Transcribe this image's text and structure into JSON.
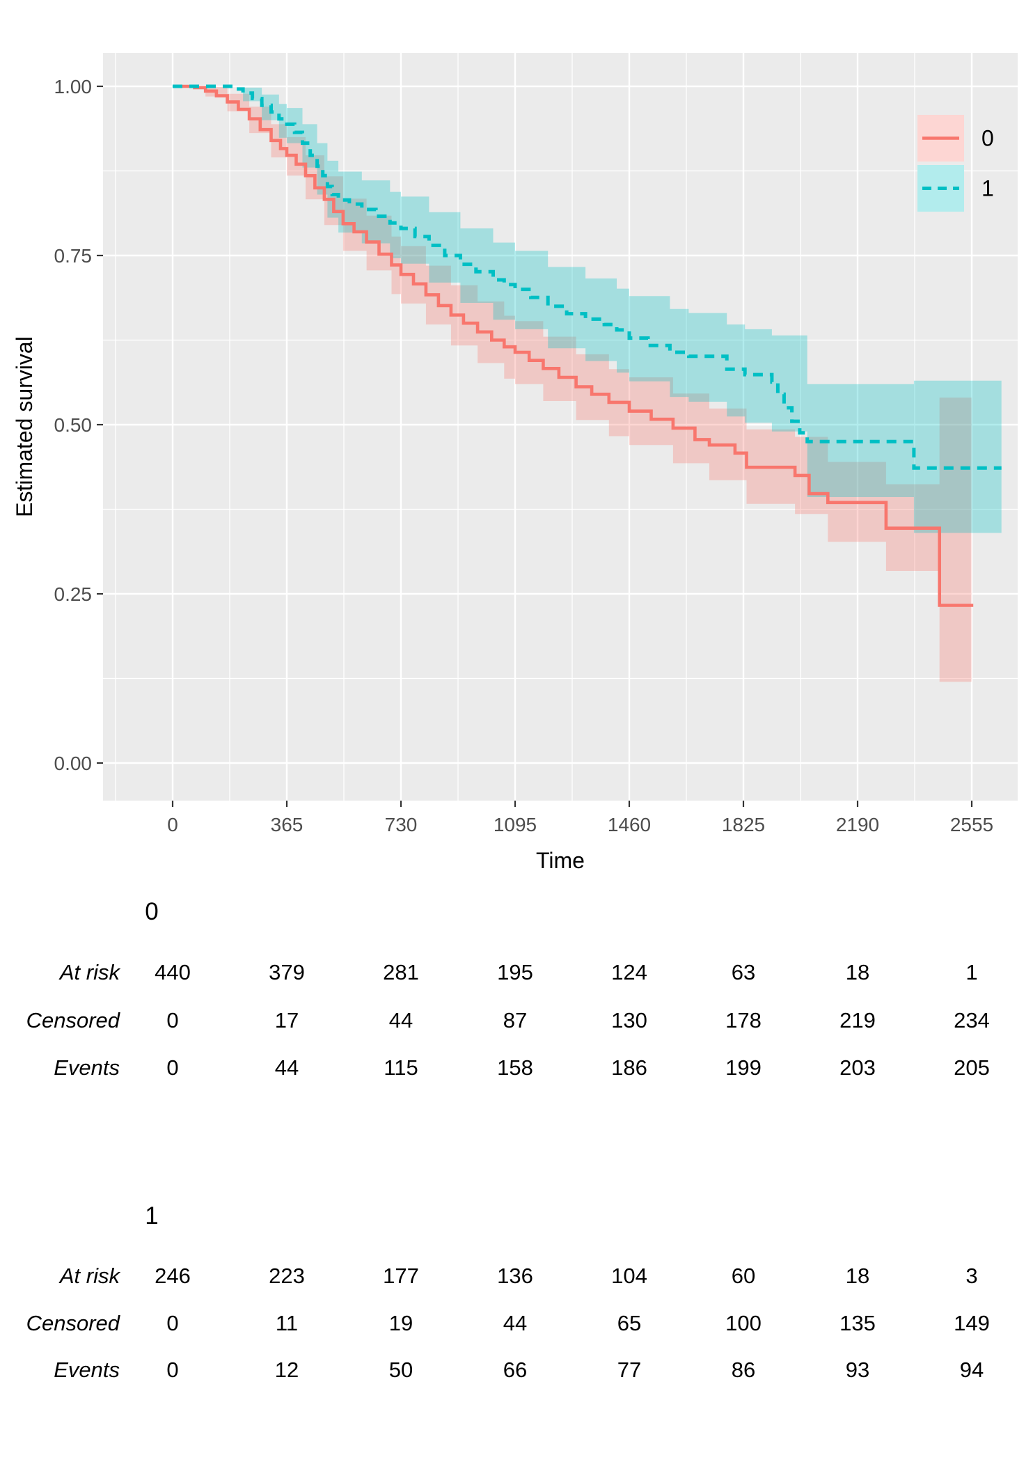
{
  "chart_data": {
    "type": "line",
    "subtype": "kaplan-meier-step-with-confidence-bands",
    "title": "",
    "xlabel": "Time",
    "ylabel": "Estimated survival",
    "x_ticks": [
      0,
      365,
      730,
      1095,
      1460,
      1825,
      2190,
      2555
    ],
    "x_tick_labels": [
      "0",
      "365",
      "730",
      "1095",
      "1460",
      "1825",
      "2190",
      "2555"
    ],
    "y_ticks": [
      0,
      0.25,
      0.5,
      0.75,
      1
    ],
    "y_tick_labels": [
      "0.00",
      "0.25",
      "0.50",
      "0.75",
      "1.00"
    ],
    "xlim": [
      -220,
      2700
    ],
    "ylim": [
      -0.055,
      1.05
    ],
    "grid": {
      "major": true,
      "minor": true,
      "color": "#FFFFFF",
      "panel_background": "#EBEBEB"
    },
    "legend": {
      "position": "inside-top-right",
      "entries": [
        {
          "label": "0"
        },
        {
          "label": "1"
        }
      ]
    },
    "series": [
      {
        "name": "0",
        "color": "#F8766D",
        "line_style": "solid",
        "end_time": 2560,
        "steps": [
          [
            0,
            1.0
          ],
          [
            70,
            0.998
          ],
          [
            105,
            0.993
          ],
          [
            140,
            0.986
          ],
          [
            175,
            0.977
          ],
          [
            210,
            0.966
          ],
          [
            245,
            0.952
          ],
          [
            280,
            0.936
          ],
          [
            315,
            0.92
          ],
          [
            345,
            0.908
          ],
          [
            365,
            0.898
          ],
          [
            395,
            0.885
          ],
          [
            425,
            0.868
          ],
          [
            455,
            0.85
          ],
          [
            485,
            0.833
          ],
          [
            515,
            0.815
          ],
          [
            545,
            0.797
          ],
          [
            580,
            0.785
          ],
          [
            620,
            0.77
          ],
          [
            660,
            0.752
          ],
          [
            700,
            0.736
          ],
          [
            730,
            0.722
          ],
          [
            770,
            0.708
          ],
          [
            810,
            0.692
          ],
          [
            850,
            0.676
          ],
          [
            890,
            0.662
          ],
          [
            930,
            0.65
          ],
          [
            975,
            0.637
          ],
          [
            1020,
            0.625
          ],
          [
            1060,
            0.615
          ],
          [
            1095,
            0.607
          ],
          [
            1140,
            0.595
          ],
          [
            1185,
            0.583
          ],
          [
            1235,
            0.57
          ],
          [
            1290,
            0.556
          ],
          [
            1340,
            0.545
          ],
          [
            1395,
            0.533
          ],
          [
            1460,
            0.52
          ],
          [
            1530,
            0.508
          ],
          [
            1600,
            0.495
          ],
          [
            1670,
            0.478
          ],
          [
            1716,
            0.47
          ],
          [
            1798,
            0.458
          ],
          [
            1835,
            0.437
          ],
          [
            1990,
            0.425
          ],
          [
            2035,
            0.398
          ],
          [
            2095,
            0.385
          ],
          [
            2281,
            0.347
          ],
          [
            2452,
            0.233
          ]
        ],
        "ribbon_end_time": 2554,
        "ribbon": [
          [
            0,
            1.0,
            1.0
          ],
          [
            105,
            0.985,
            0.999
          ],
          [
            175,
            0.963,
            0.989
          ],
          [
            245,
            0.931,
            0.97
          ],
          [
            315,
            0.895,
            0.944
          ],
          [
            365,
            0.868,
            0.925
          ],
          [
            425,
            0.833,
            0.898
          ],
          [
            485,
            0.795,
            0.867
          ],
          [
            545,
            0.757,
            0.834
          ],
          [
            620,
            0.728,
            0.809
          ],
          [
            700,
            0.693,
            0.778
          ],
          [
            730,
            0.679,
            0.764
          ],
          [
            810,
            0.648,
            0.735
          ],
          [
            890,
            0.617,
            0.706
          ],
          [
            975,
            0.591,
            0.682
          ],
          [
            1060,
            0.568,
            0.661
          ],
          [
            1095,
            0.56,
            0.653
          ],
          [
            1185,
            0.535,
            0.63
          ],
          [
            1290,
            0.507,
            0.604
          ],
          [
            1395,
            0.483,
            0.582
          ],
          [
            1460,
            0.47,
            0.57
          ],
          [
            1600,
            0.443,
            0.546
          ],
          [
            1716,
            0.418,
            0.524
          ],
          [
            1835,
            0.383,
            0.493
          ],
          [
            1990,
            0.368,
            0.482
          ],
          [
            2095,
            0.327,
            0.445
          ],
          [
            2281,
            0.284,
            0.412
          ],
          [
            2452,
            0.12,
            0.54
          ]
        ]
      },
      {
        "name": "1",
        "color": "#00BFC4",
        "line_style": "dashed",
        "end_time": 2650,
        "steps": [
          [
            0,
            1.0
          ],
          [
            195,
            0.996
          ],
          [
            225,
            0.99
          ],
          [
            255,
            0.982
          ],
          [
            285,
            0.972
          ],
          [
            315,
            0.962
          ],
          [
            340,
            0.952
          ],
          [
            365,
            0.944
          ],
          [
            390,
            0.932
          ],
          [
            415,
            0.916
          ],
          [
            440,
            0.898
          ],
          [
            462,
            0.882
          ],
          [
            480,
            0.868
          ],
          [
            495,
            0.852
          ],
          [
            510,
            0.84
          ],
          [
            530,
            0.832
          ],
          [
            565,
            0.826
          ],
          [
            605,
            0.818
          ],
          [
            650,
            0.808
          ],
          [
            695,
            0.798
          ],
          [
            730,
            0.79
          ],
          [
            775,
            0.778
          ],
          [
            820,
            0.765
          ],
          [
            870,
            0.75
          ],
          [
            920,
            0.737
          ],
          [
            970,
            0.726
          ],
          [
            1025,
            0.714
          ],
          [
            1060,
            0.707
          ],
          [
            1095,
            0.7
          ],
          [
            1145,
            0.688
          ],
          [
            1200,
            0.675
          ],
          [
            1260,
            0.664
          ],
          [
            1320,
            0.656
          ],
          [
            1380,
            0.648
          ],
          [
            1420,
            0.64
          ],
          [
            1460,
            0.628
          ],
          [
            1520,
            0.617
          ],
          [
            1590,
            0.607
          ],
          [
            1650,
            0.601
          ],
          [
            1772,
            0.582
          ],
          [
            1830,
            0.574
          ],
          [
            1916,
            0.563
          ],
          [
            1935,
            0.545
          ],
          [
            1955,
            0.525
          ],
          [
            1980,
            0.505
          ],
          [
            2005,
            0.488
          ],
          [
            2029,
            0.475
          ],
          [
            2370,
            0.436
          ]
        ],
        "ribbon_end_time": 2650,
        "ribbon": [
          [
            0,
            1.0,
            1.0
          ],
          [
            225,
            0.978,
            0.998
          ],
          [
            285,
            0.95,
            0.988
          ],
          [
            340,
            0.924,
            0.974
          ],
          [
            365,
            0.916,
            0.968
          ],
          [
            415,
            0.88,
            0.944
          ],
          [
            462,
            0.84,
            0.916
          ],
          [
            495,
            0.806,
            0.89
          ],
          [
            530,
            0.784,
            0.874
          ],
          [
            605,
            0.768,
            0.861
          ],
          [
            695,
            0.746,
            0.844
          ],
          [
            730,
            0.738,
            0.837
          ],
          [
            820,
            0.71,
            0.814
          ],
          [
            920,
            0.68,
            0.79
          ],
          [
            1025,
            0.655,
            0.769
          ],
          [
            1095,
            0.641,
            0.757
          ],
          [
            1200,
            0.613,
            0.733
          ],
          [
            1320,
            0.594,
            0.716
          ],
          [
            1420,
            0.577,
            0.701
          ],
          [
            1460,
            0.564,
            0.69
          ],
          [
            1590,
            0.541,
            0.671
          ],
          [
            1650,
            0.534,
            0.665
          ],
          [
            1772,
            0.512,
            0.648
          ],
          [
            1830,
            0.503,
            0.641
          ],
          [
            1916,
            0.49,
            0.632
          ],
          [
            2029,
            0.393,
            0.56
          ],
          [
            2370,
            0.34,
            0.565
          ]
        ]
      }
    ]
  },
  "styles": {
    "panel_background": "#EBEBEB",
    "gridline_color": "#FFFFFF",
    "tick_text_color": "#4D4D4D",
    "tick_mark_color": "#333333",
    "group0_color": "#F8766D",
    "group1_color": "#00BFC4"
  },
  "risk_tables": [
    {
      "group_label": "0",
      "rows": [
        {
          "label": "At risk",
          "values": [
            "440",
            "379",
            "281",
            "195",
            "124",
            "63",
            "18",
            "1"
          ]
        },
        {
          "label": "Censored",
          "values": [
            "0",
            "17",
            "44",
            "87",
            "130",
            "178",
            "219",
            "234"
          ]
        },
        {
          "label": "Events",
          "values": [
            "0",
            "44",
            "115",
            "158",
            "186",
            "199",
            "203",
            "205"
          ]
        }
      ]
    },
    {
      "group_label": "1",
      "rows": [
        {
          "label": "At risk",
          "values": [
            "246",
            "223",
            "177",
            "136",
            "104",
            "60",
            "18",
            "3"
          ]
        },
        {
          "label": "Censored",
          "values": [
            "0",
            "11",
            "19",
            "44",
            "65",
            "100",
            "135",
            "149"
          ]
        },
        {
          "label": "Events",
          "values": [
            "0",
            "12",
            "50",
            "66",
            "77",
            "86",
            "93",
            "94"
          ]
        }
      ]
    }
  ]
}
